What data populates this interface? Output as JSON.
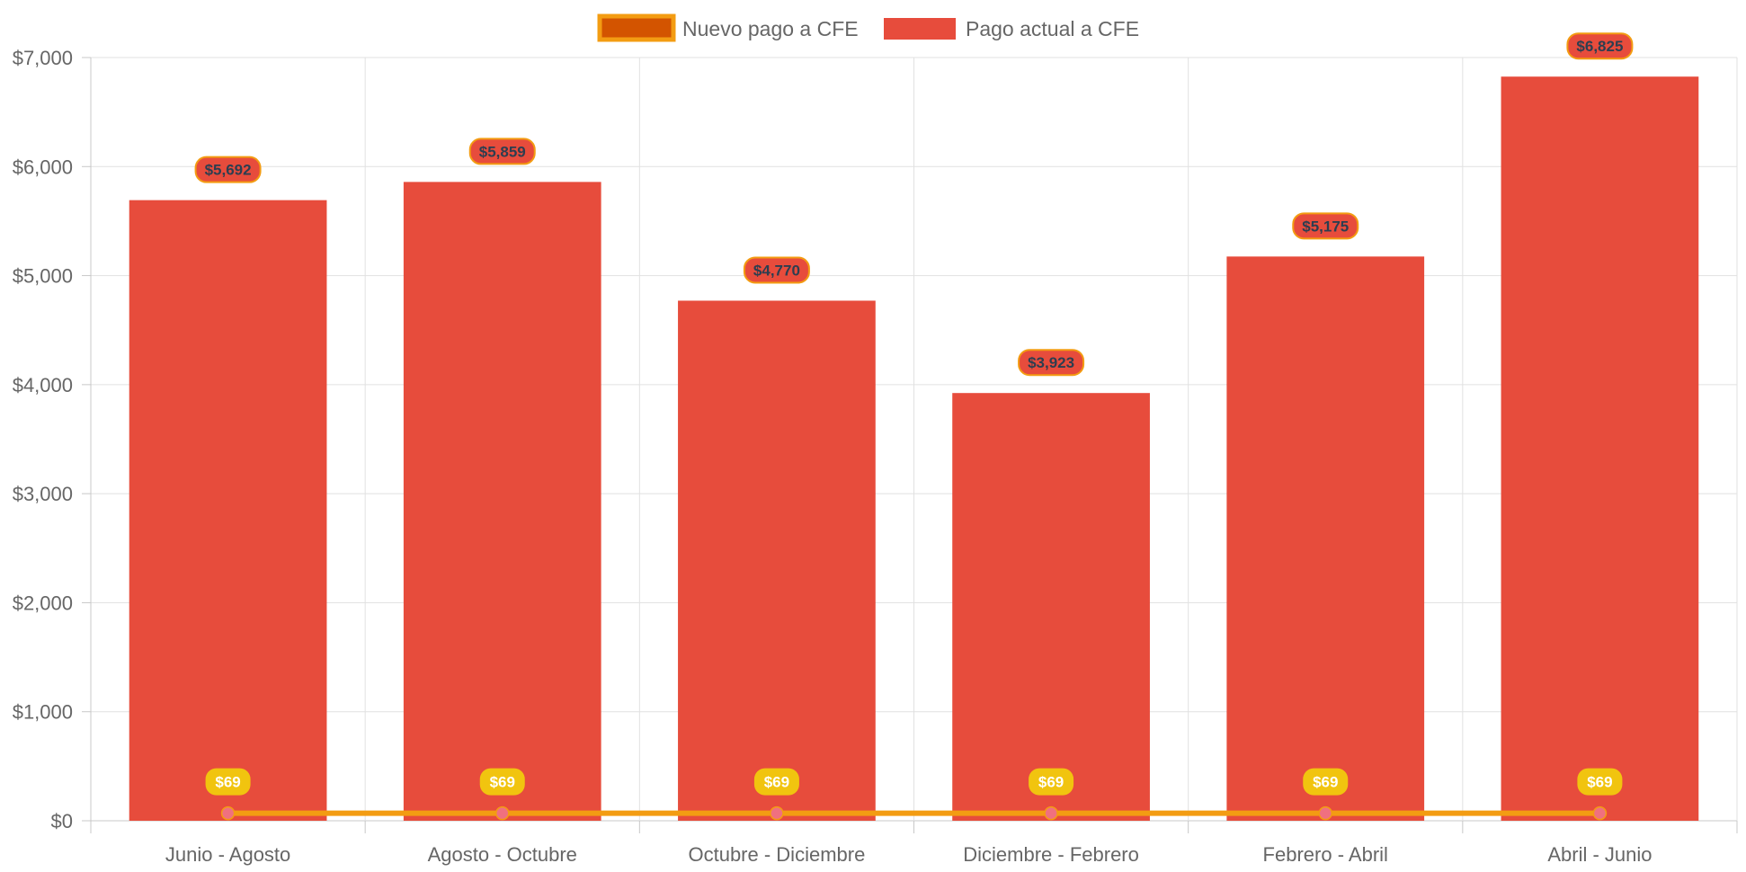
{
  "chart_data": {
    "type": "bar",
    "categories": [
      "Junio - Agosto",
      "Agosto - Octubre",
      "Octubre - Diciembre",
      "Diciembre - Febrero",
      "Febrero - Abril",
      "Abril - Junio"
    ],
    "series": [
      {
        "name": "Nuevo pago a CFE",
        "type": "line",
        "values": [
          69,
          69,
          69,
          69,
          69,
          69
        ],
        "labels": [
          "$69",
          "$69",
          "$69",
          "$69",
          "$69",
          "$69"
        ],
        "color": "#f39c12",
        "swatch_fill": "#d35400"
      },
      {
        "name": "Pago actual a CFE",
        "type": "bar",
        "values": [
          5692,
          5859,
          4770,
          3923,
          5175,
          6825
        ],
        "labels": [
          "$5,692",
          "$5,859",
          "$4,770",
          "$3,923",
          "$5,175",
          "$6,825"
        ],
        "color": "#e74c3c"
      }
    ],
    "y_ticks": [
      0,
      1000,
      2000,
      3000,
      4000,
      5000,
      6000,
      7000
    ],
    "y_tick_labels": [
      "$0",
      "$1,000",
      "$2,000",
      "$3,000",
      "$4,000",
      "$5,000",
      "$6,000",
      "$7,000"
    ],
    "ylim": [
      0,
      7000
    ],
    "legend_position": "top-center",
    "grid": true,
    "title": "",
    "xlabel": "",
    "ylabel": ""
  }
}
